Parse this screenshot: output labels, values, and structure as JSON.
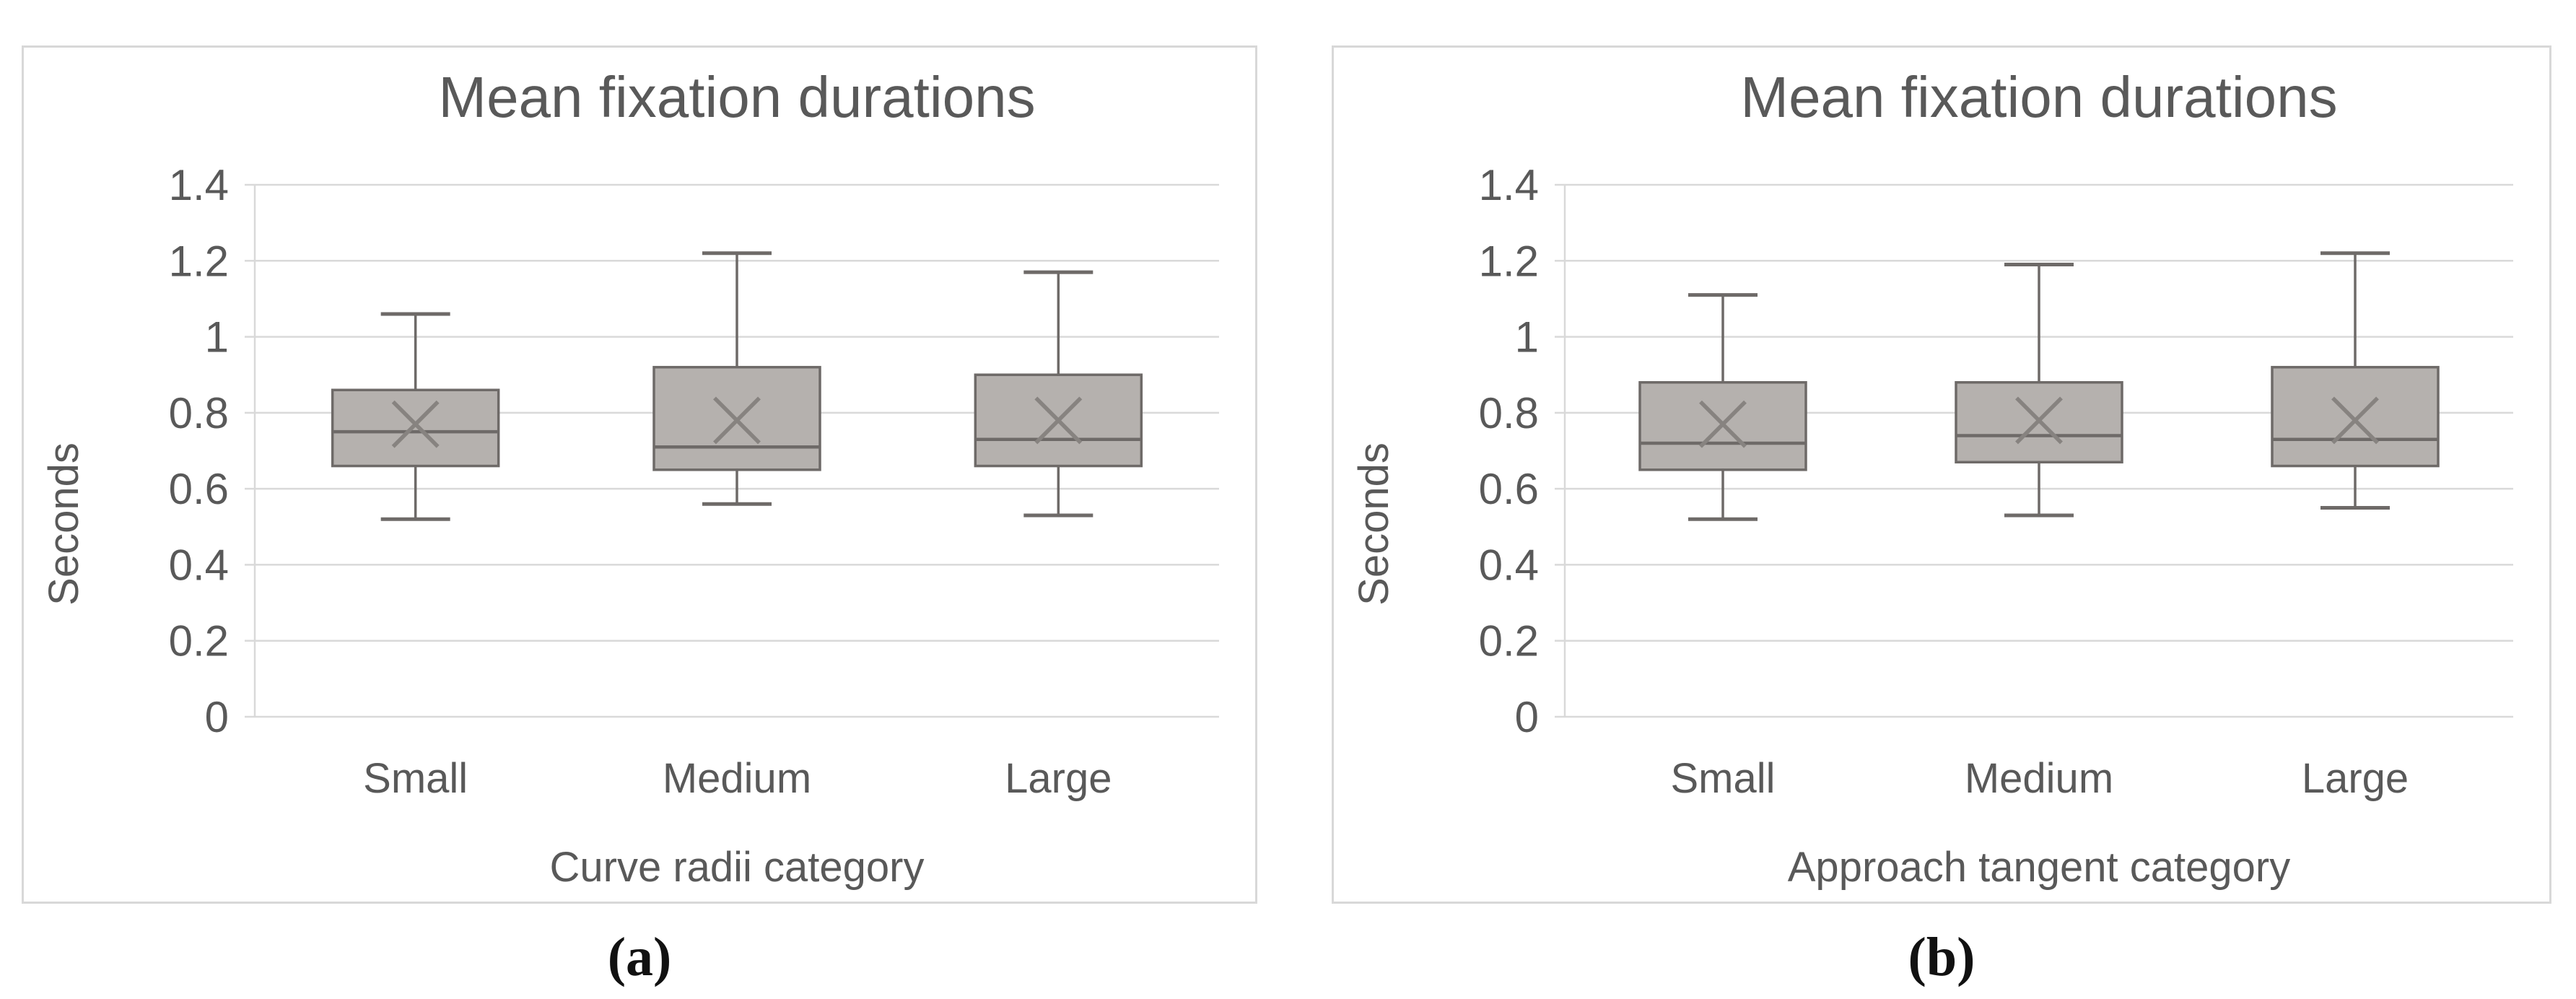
{
  "page": {
    "background": "#ffffff"
  },
  "colors": {
    "grid": "#d9d9d9",
    "axis": "#d9d9d9",
    "text": "#595959",
    "box_fill": "#b5b1ae",
    "box_border": "#6e6a68",
    "whisker": "#6e6a68",
    "median": "#6e6a68",
    "mean_marker": "#878380",
    "panel_border": "#d8d8d8",
    "caption_text": "#111111"
  },
  "captions": {
    "a": "(a)",
    "b": "(b)"
  },
  "chart_data": [
    {
      "id": "chart-a",
      "type": "boxplot",
      "title": "Mean fixation durations",
      "ylabel": "Seconds",
      "xlabel": "Curve radii category",
      "caption": "(a)",
      "grid": true,
      "ylim": [
        0,
        1.4
      ],
      "yticks": [
        {
          "label": "1.4",
          "value": 1.4
        },
        {
          "label": "1.2",
          "value": 1.2
        },
        {
          "label": "1",
          "value": 1.0
        },
        {
          "label": "0.8",
          "value": 0.8
        },
        {
          "label": "0.6",
          "value": 0.6
        },
        {
          "label": "0.4",
          "value": 0.4
        },
        {
          "label": "0.2",
          "value": 0.2
        },
        {
          "label": "0",
          "value": 0
        }
      ],
      "categories": [
        "Small",
        "Medium",
        "Large"
      ],
      "series": [
        {
          "label": "Small",
          "min": 0.52,
          "q1": 0.66,
          "median": 0.75,
          "mean": 0.77,
          "q3": 0.86,
          "max": 1.06
        },
        {
          "label": "Medium",
          "min": 0.56,
          "q1": 0.65,
          "median": 0.71,
          "mean": 0.78,
          "q3": 0.92,
          "max": 1.22
        },
        {
          "label": "Large",
          "min": 0.53,
          "q1": 0.66,
          "median": 0.73,
          "mean": 0.78,
          "q3": 0.9,
          "max": 1.17
        }
      ]
    },
    {
      "id": "chart-b",
      "type": "boxplot",
      "title": "Mean fixation durations",
      "ylabel": "Seconds",
      "xlabel": "Approach tangent category",
      "caption": "(b)",
      "grid": true,
      "ylim": [
        0,
        1.4
      ],
      "yticks": [
        {
          "label": "1.4",
          "value": 1.4
        },
        {
          "label": "1.2",
          "value": 1.2
        },
        {
          "label": "1",
          "value": 1.0
        },
        {
          "label": "0.8",
          "value": 0.8
        },
        {
          "label": "0.6",
          "value": 0.6
        },
        {
          "label": "0.4",
          "value": 0.4
        },
        {
          "label": "0.2",
          "value": 0.2
        },
        {
          "label": "0",
          "value": 0
        }
      ],
      "categories": [
        "Small",
        "Medium",
        "Large"
      ],
      "series": [
        {
          "label": "Small",
          "min": 0.52,
          "q1": 0.65,
          "median": 0.72,
          "mean": 0.77,
          "q3": 0.88,
          "max": 1.11
        },
        {
          "label": "Medium",
          "min": 0.53,
          "q1": 0.67,
          "median": 0.74,
          "mean": 0.78,
          "q3": 0.88,
          "max": 1.19
        },
        {
          "label": "Large",
          "min": 0.55,
          "q1": 0.66,
          "median": 0.73,
          "mean": 0.78,
          "q3": 0.92,
          "max": 1.22
        }
      ]
    }
  ]
}
